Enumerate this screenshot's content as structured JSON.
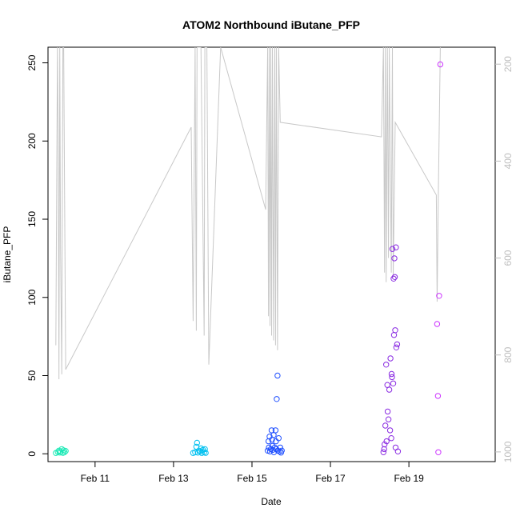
{
  "chart_data": {
    "type": "scatter",
    "title": "ATOM2 Northbound iButane_PFP",
    "xlabel": "Date",
    "ylabel": "iButane_PFP",
    "x_unit": "days (February)",
    "xlim": [
      9.8,
      21.2
    ],
    "ylim": [
      -5,
      260
    ],
    "x_ticks": [
      {
        "value": 11,
        "label": "Feb 11"
      },
      {
        "value": 13,
        "label": "Feb 13"
      },
      {
        "value": 15,
        "label": "Feb 15"
      },
      {
        "value": 17,
        "label": "Feb 17"
      },
      {
        "value": 19,
        "label": "Feb 19"
      }
    ],
    "y_ticks": [
      0,
      50,
      100,
      150,
      200,
      250
    ],
    "right_axis": {
      "ylim": [
        1020,
        165
      ],
      "ticks": [
        200,
        400,
        600,
        800,
        1000
      ],
      "color": "#bebebe"
    },
    "grid": false,
    "legend": "none",
    "series": [
      {
        "color": "#1de9b6",
        "points": [
          [
            10.0,
            0.5
          ],
          [
            10.05,
            1.2
          ],
          [
            10.08,
            2.0
          ],
          [
            10.1,
            0.8
          ],
          [
            10.12,
            1.5
          ],
          [
            10.15,
            3.0
          ],
          [
            10.18,
            0.6
          ],
          [
            10.2,
            2.2
          ],
          [
            10.22,
            1.0
          ],
          [
            10.25,
            1.8
          ]
        ]
      },
      {
        "color": "#00c0f0",
        "points": [
          [
            13.5,
            0.5
          ],
          [
            13.55,
            1.0
          ],
          [
            13.58,
            4.5
          ],
          [
            13.6,
            7.0
          ],
          [
            13.62,
            0.8
          ],
          [
            13.65,
            2.0
          ],
          [
            13.68,
            1.5
          ],
          [
            13.7,
            3.5
          ],
          [
            13.72,
            0.5
          ],
          [
            13.75,
            2.5
          ],
          [
            13.78,
            1.0
          ],
          [
            13.8,
            3.0
          ],
          [
            13.82,
            0.6
          ]
        ]
      },
      {
        "color": "#1f4fff",
        "points": [
          [
            15.4,
            2.0
          ],
          [
            15.42,
            8.0
          ],
          [
            15.43,
            4.0
          ],
          [
            15.45,
            11.0
          ],
          [
            15.46,
            1.5
          ],
          [
            15.48,
            3.0
          ],
          [
            15.5,
            15.0
          ],
          [
            15.51,
            9.0
          ],
          [
            15.52,
            5.0
          ],
          [
            15.53,
            2.5
          ],
          [
            15.55,
            12.0
          ],
          [
            15.56,
            1.0
          ],
          [
            15.58,
            4.0
          ],
          [
            15.6,
            15.0
          ],
          [
            15.61,
            8.0
          ],
          [
            15.62,
            3.0
          ],
          [
            15.63,
            35.0
          ],
          [
            15.65,
            50.0
          ],
          [
            15.66,
            2.0
          ],
          [
            15.68,
            10.0
          ],
          [
            15.7,
            1.5
          ],
          [
            15.72,
            4.0
          ],
          [
            15.74,
            0.8
          ],
          [
            15.76,
            2.0
          ]
        ]
      },
      {
        "color": "#8a2be2",
        "points": [
          [
            18.35,
            1.0
          ],
          [
            18.37,
            3.0
          ],
          [
            18.38,
            6.0
          ],
          [
            18.4,
            18.0
          ],
          [
            18.42,
            57.0
          ],
          [
            18.43,
            8.0
          ],
          [
            18.45,
            44.0
          ],
          [
            18.46,
            27.0
          ],
          [
            18.48,
            22.0
          ],
          [
            18.5,
            41.0
          ],
          [
            18.52,
            15.0
          ],
          [
            18.53,
            61.0
          ],
          [
            18.55,
            10.0
          ],
          [
            18.56,
            51.0
          ],
          [
            18.57,
            49.0
          ],
          [
            18.58,
            131.0
          ],
          [
            18.6,
            45.0
          ],
          [
            18.61,
            112.0
          ],
          [
            18.62,
            76.0
          ],
          [
            18.63,
            125.0
          ],
          [
            18.64,
            113.0
          ],
          [
            18.65,
            79.0
          ],
          [
            18.66,
            4.0
          ],
          [
            18.67,
            132.0
          ],
          [
            18.68,
            68.0
          ],
          [
            18.7,
            70.0
          ],
          [
            18.72,
            1.5
          ]
        ]
      },
      {
        "color": "#cc33ff",
        "points": [
          [
            19.72,
            83.0
          ],
          [
            19.74,
            37.0
          ],
          [
            19.75,
            1.0
          ],
          [
            19.77,
            101.0
          ],
          [
            19.8,
            249.0
          ]
        ]
      }
    ],
    "overlay_line": {
      "color": "#c8c8c8",
      "axis": "right",
      "points": [
        [
          10.0,
          780
        ],
        [
          10.04,
          165
        ],
        [
          10.06,
          340
        ],
        [
          10.08,
          850
        ],
        [
          10.1,
          165
        ],
        [
          10.12,
          580
        ],
        [
          10.15,
          840
        ],
        [
          10.18,
          165
        ],
        [
          10.2,
          165
        ],
        [
          10.25,
          830
        ],
        [
          13.45,
          330
        ],
        [
          13.5,
          730
        ],
        [
          13.55,
          165
        ],
        [
          13.58,
          750
        ],
        [
          13.6,
          165
        ],
        [
          13.65,
          165
        ],
        [
          13.7,
          165
        ],
        [
          13.78,
          760
        ],
        [
          13.8,
          165
        ],
        [
          13.85,
          165
        ],
        [
          13.9,
          820
        ],
        [
          14.2,
          165
        ],
        [
          15.35,
          500
        ],
        [
          15.4,
          165
        ],
        [
          15.42,
          720
        ],
        [
          15.44,
          165
        ],
        [
          15.46,
          740
        ],
        [
          15.48,
          165
        ],
        [
          15.5,
          760
        ],
        [
          15.52,
          165
        ],
        [
          15.55,
          770
        ],
        [
          15.58,
          165
        ],
        [
          15.6,
          780
        ],
        [
          15.62,
          165
        ],
        [
          15.65,
          790
        ],
        [
          15.68,
          165
        ],
        [
          15.72,
          320
        ],
        [
          18.3,
          350
        ],
        [
          18.35,
          165
        ],
        [
          18.38,
          630
        ],
        [
          18.4,
          165
        ],
        [
          18.42,
          650
        ],
        [
          18.45,
          165
        ],
        [
          18.48,
          600
        ],
        [
          18.5,
          165
        ],
        [
          18.55,
          630
        ],
        [
          18.58,
          165
        ],
        [
          18.6,
          640
        ],
        [
          18.65,
          320
        ],
        [
          19.7,
          470
        ],
        [
          19.72,
          690
        ],
        [
          19.75,
          470
        ],
        [
          19.8,
          165
        ]
      ]
    }
  }
}
